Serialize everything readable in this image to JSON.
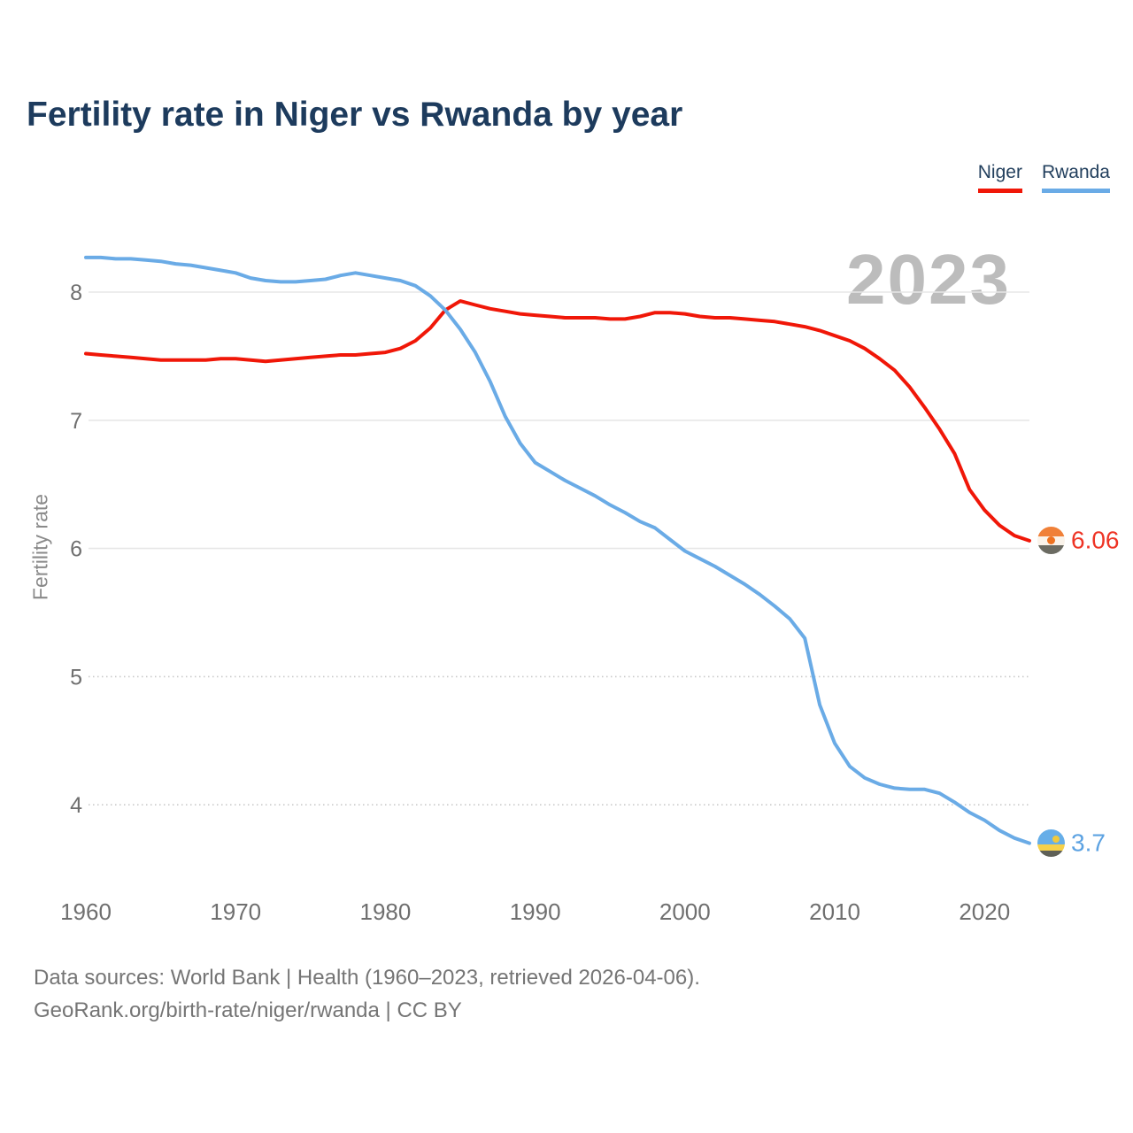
{
  "page": {
    "title": "Fertility rate in Niger vs Rwanda by year"
  },
  "legend": {
    "items": [
      {
        "label": "Niger",
        "color": "#f01708"
      },
      {
        "label": "Rwanda",
        "color": "#6aabe6"
      }
    ]
  },
  "watermark": "2023",
  "axes": {
    "y_label": "Fertility rate",
    "y_ticks": [
      8,
      7,
      6,
      5,
      4
    ],
    "x_ticks": [
      1960,
      1970,
      1980,
      1990,
      2000,
      2010,
      2020
    ]
  },
  "endpoints": [
    {
      "series": "Niger",
      "label": "6.06",
      "text_color": "#ee3425"
    },
    {
      "series": "Rwanda",
      "label": "3.7",
      "text_color": "#5ca2e2"
    }
  ],
  "footer": {
    "line1": "Data sources: World Bank | Health (1960–2023, retrieved 2026-04-06).",
    "line2": "GeoRank.org/birth-rate/niger/rwanda | CC BY"
  },
  "chart_data": {
    "type": "line",
    "title": "Fertility rate in Niger vs Rwanda by year",
    "xlabel": "",
    "ylabel": "Fertility rate",
    "ylim": [
      3.4,
      8.6
    ],
    "xlim": [
      1960,
      2023
    ],
    "grid": "horizontal",
    "legend_position": "top-right",
    "x": [
      1960,
      1961,
      1962,
      1963,
      1964,
      1965,
      1966,
      1967,
      1968,
      1969,
      1970,
      1971,
      1972,
      1973,
      1974,
      1975,
      1976,
      1977,
      1978,
      1979,
      1980,
      1981,
      1982,
      1983,
      1984,
      1985,
      1986,
      1987,
      1988,
      1989,
      1990,
      1991,
      1992,
      1993,
      1994,
      1995,
      1996,
      1997,
      1998,
      1999,
      2000,
      2001,
      2002,
      2003,
      2004,
      2005,
      2006,
      2007,
      2008,
      2009,
      2010,
      2011,
      2012,
      2013,
      2014,
      2015,
      2016,
      2017,
      2018,
      2019,
      2020,
      2021,
      2022,
      2023
    ],
    "series": [
      {
        "name": "Niger",
        "color": "#f01708",
        "end_value": 6.06,
        "values": [
          7.52,
          7.51,
          7.5,
          7.49,
          7.48,
          7.47,
          7.47,
          7.47,
          7.47,
          7.48,
          7.48,
          7.47,
          7.46,
          7.47,
          7.48,
          7.49,
          7.5,
          7.51,
          7.51,
          7.52,
          7.53,
          7.56,
          7.62,
          7.72,
          7.86,
          7.93,
          7.9,
          7.87,
          7.85,
          7.83,
          7.82,
          7.81,
          7.8,
          7.8,
          7.8,
          7.79,
          7.79,
          7.81,
          7.84,
          7.84,
          7.83,
          7.81,
          7.8,
          7.8,
          7.79,
          7.78,
          7.77,
          7.75,
          7.73,
          7.7,
          7.66,
          7.62,
          7.56,
          7.48,
          7.39,
          7.26,
          7.1,
          6.93,
          6.74,
          6.46,
          6.3,
          6.18,
          6.1,
          6.06
        ]
      },
      {
        "name": "Rwanda",
        "color": "#6aabe6",
        "end_value": 3.7,
        "values": [
          8.27,
          8.27,
          8.26,
          8.26,
          8.25,
          8.24,
          8.22,
          8.21,
          8.19,
          8.17,
          8.15,
          8.11,
          8.09,
          8.08,
          8.08,
          8.09,
          8.1,
          8.13,
          8.15,
          8.13,
          8.11,
          8.09,
          8.05,
          7.97,
          7.86,
          7.71,
          7.53,
          7.3,
          7.03,
          6.82,
          6.67,
          6.6,
          6.53,
          6.47,
          6.41,
          6.34,
          6.28,
          6.21,
          6.16,
          6.07,
          5.98,
          5.92,
          5.86,
          5.79,
          5.72,
          5.64,
          5.55,
          5.45,
          5.3,
          4.78,
          4.48,
          4.3,
          4.21,
          4.16,
          4.13,
          4.12,
          4.12,
          4.09,
          4.02,
          3.94,
          3.88,
          3.8,
          3.74,
          3.7
        ]
      }
    ]
  }
}
